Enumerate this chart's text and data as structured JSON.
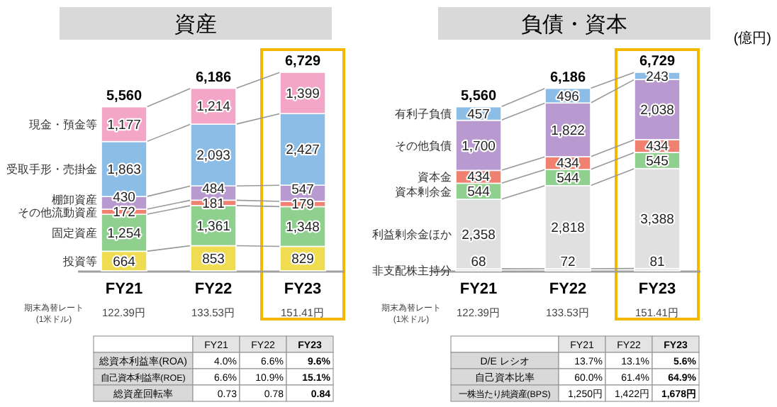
{
  "chart_data": [
    {
      "type": "bar",
      "stacked": true,
      "title": "資産",
      "categories": [
        "FY21",
        "FY22",
        "FY23"
      ],
      "legend": false,
      "series": [
        {
          "name": "投資等",
          "color": "#f0dc50",
          "values": [
            664,
            853,
            829
          ],
          "value_labels": [
            "664",
            "853",
            "829"
          ]
        },
        {
          "name": "固定資産",
          "color": "#8fd08f",
          "values": [
            1254,
            1361,
            1348
          ],
          "value_labels": [
            "1,254",
            "1,361",
            "1,348"
          ]
        },
        {
          "name": "その他流動資産",
          "color": "#f08070",
          "values": [
            172,
            181,
            179
          ],
          "value_labels": [
            "172",
            "181",
            "179"
          ]
        },
        {
          "name": "棚卸資産",
          "color": "#b99ad0",
          "values": [
            430,
            484,
            547
          ],
          "value_labels": [
            "430",
            "484",
            "547"
          ]
        },
        {
          "name": "受取手形・売掛金",
          "color": "#8bbde6",
          "values": [
            1863,
            2093,
            2427
          ],
          "value_labels": [
            "1,863",
            "2,093",
            "2,427"
          ]
        },
        {
          "name": "現金・預金等",
          "color": "#f4a6c8",
          "values": [
            1177,
            1214,
            1399
          ],
          "value_labels": [
            "1,177",
            "1,214",
            "1,399"
          ]
        }
      ],
      "totals": [
        "5,560",
        "6,186",
        "6,729"
      ],
      "annotations": [
        "期末為替レート\n(1米ドル)",
        "122.39円",
        "133.53円",
        "151.41円"
      ]
    },
    {
      "type": "bar",
      "stacked": true,
      "title": "負債・資本",
      "ylabel": "(億円)",
      "categories": [
        "FY21",
        "FY22",
        "FY23"
      ],
      "legend": false,
      "series": [
        {
          "name": "非支配株主持分",
          "color": "#e0e0e0",
          "values": [
            68,
            72,
            81
          ],
          "value_labels": [
            "68",
            "72",
            "81"
          ]
        },
        {
          "name": "利益剰余金ほか",
          "color": "#e0e0e0",
          "values": [
            2358,
            2818,
            3388
          ],
          "value_labels": [
            "2,358",
            "2,818",
            "3,388"
          ]
        },
        {
          "name": "資本剰余金",
          "color": "#8fd08f",
          "values": [
            544,
            544,
            545
          ],
          "value_labels": [
            "544",
            "544",
            "545"
          ]
        },
        {
          "name": "資本金",
          "color": "#f08070",
          "values": [
            434,
            434,
            434
          ],
          "value_labels": [
            "434",
            "434",
            "434"
          ]
        },
        {
          "name": "その他負債",
          "color": "#b99ad0",
          "values": [
            1700,
            1822,
            2038
          ],
          "value_labels": [
            "1,700",
            "1,822",
            "2,038"
          ]
        },
        {
          "name": "有利子負債",
          "color": "#8bbde6",
          "values": [
            457,
            496,
            243
          ],
          "value_labels": [
            "457",
            "496",
            "243"
          ]
        }
      ],
      "totals": [
        "5,560",
        "6,186",
        "6,729"
      ],
      "annotations": [
        "期末為替レート\n(1米ドル)",
        "122.39円",
        "133.53円",
        "151.41円"
      ]
    },
    {
      "type": "other",
      "categories": [
        "FY21",
        "FY22",
        "FY23"
      ],
      "y_categories": [
        "総資本利益率(ROA)",
        "自己資本利益率(ROE)",
        "総資産回転率"
      ],
      "cell_labels": [
        [
          "4.0%",
          "6.6%",
          "9.6%"
        ],
        [
          "6.6%",
          "10.9%",
          "15.1%"
        ],
        [
          "0.73",
          "0.78",
          "0.84"
        ]
      ]
    },
    {
      "type": "other",
      "categories": [
        "FY21",
        "FY22",
        "FY23"
      ],
      "y_categories": [
        "D/E レシオ",
        "自己資本比率",
        "一株当たり純資産(BPS)"
      ],
      "cell_labels": [
        [
          "13.7%",
          "13.1%",
          "5.6%"
        ],
        [
          "60.0%",
          "61.4%",
          "64.9%"
        ],
        [
          "1,250円",
          "1,422円",
          "1,678円"
        ]
      ]
    }
  ]
}
